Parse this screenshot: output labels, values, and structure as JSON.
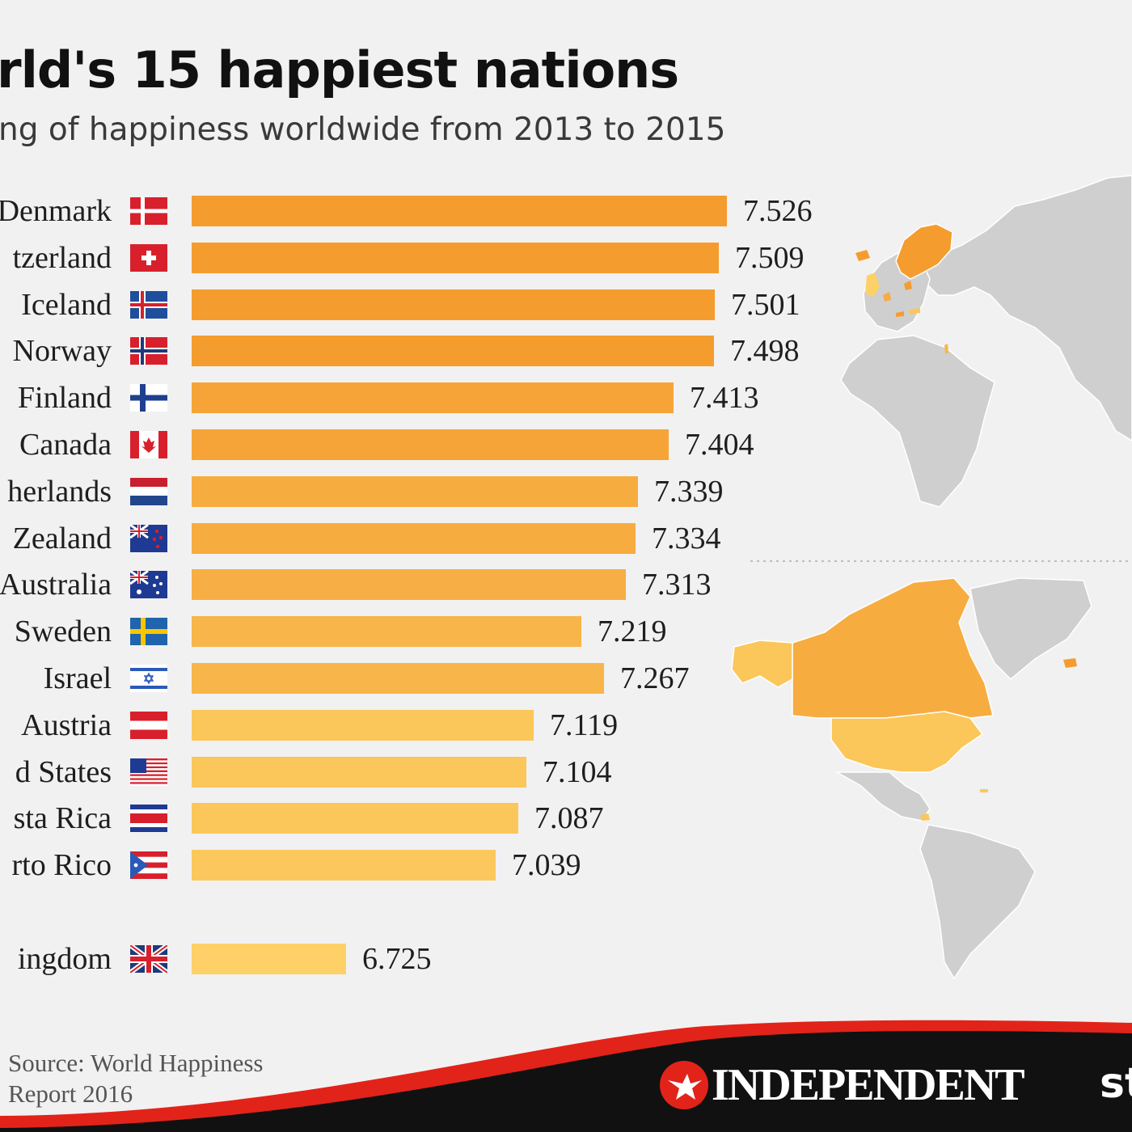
{
  "title": "rld's 15 happiest nations",
  "subtitle": "ng of happiness worldwide from 2013 to 2015",
  "chart_data": {
    "type": "bar",
    "orientation": "horizontal",
    "categories": [
      "Denmark",
      "tzerland",
      "Iceland",
      "Norway",
      "Finland",
      "Canada",
      "herlands",
      "Zealand",
      "Australia",
      "Sweden",
      "Israel",
      "Austria",
      "d States",
      "sta Rica",
      "rto Rico",
      "ingdom"
    ],
    "values": [
      7.526,
      7.509,
      7.501,
      7.498,
      7.413,
      7.404,
      7.339,
      7.334,
      7.313,
      7.219,
      7.267,
      7.119,
      7.104,
      7.087,
      7.039,
      6.725
    ],
    "value_labels": [
      "7.526",
      "7.509",
      "7.501",
      "7.498",
      "7.413",
      "7.404",
      "7.339",
      "7.334",
      "7.313",
      "7.219",
      "7.267",
      "7.119",
      "7.104",
      "7.087",
      "7.039",
      "6.725"
    ],
    "flags": [
      "denmark",
      "switzerland",
      "iceland",
      "norway",
      "finland",
      "canada",
      "netherlands",
      "new-zealand",
      "australia",
      "sweden",
      "israel",
      "austria",
      "united-states",
      "costa-rica",
      "puerto-rico",
      "united-kingdom"
    ],
    "colors": [
      "#f59c2f",
      "#f59c2f",
      "#f59c2f",
      "#f59c2f",
      "#f6a437",
      "#f6a437",
      "#f7ac40",
      "#f7ac40",
      "#f7ae44",
      "#f8b549",
      "#f8b549",
      "#fbc65a",
      "#fbc65a",
      "#fbc65a",
      "#fcc75d",
      "#fdd068"
    ],
    "xlim": [
      6.4,
      7.6
    ],
    "grid": false,
    "legend": "none"
  },
  "source": {
    "line1": "Source: World Happiness",
    "line2": "Report 2016"
  },
  "brand": {
    "name": "INDEPENDENT",
    "partner": "st"
  },
  "theme": {
    "background": "#f1f1f1",
    "map_land": "#cfcfcf",
    "highlight_dark": "#f59c2f",
    "highlight_mid": "#f8ad41",
    "highlight_light": "#fdd068",
    "footer_red": "#e2231a",
    "footer_black": "#111111"
  }
}
